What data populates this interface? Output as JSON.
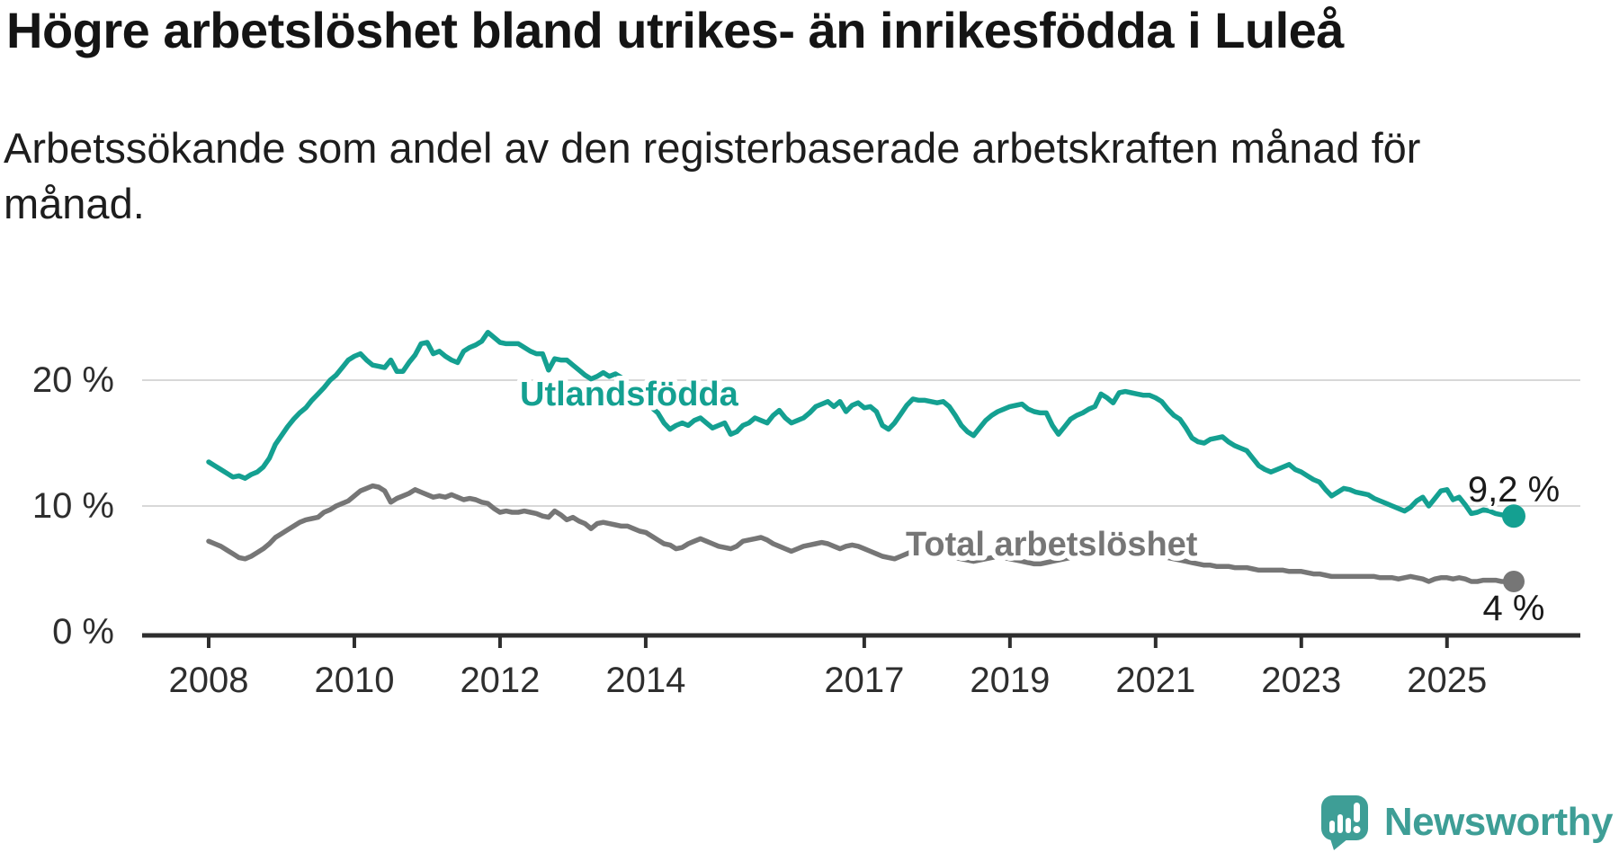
{
  "header": {
    "title": "Högre arbetslöshet bland utrikes- än inrikesfödda i Luleå",
    "subtitle_lines": [
      "Arbetssökande som andel av den registerbaserade arbetskraften månad för",
      "månad."
    ]
  },
  "footer": {
    "brand": "Newsworthy",
    "logo_icon": "speech-bubble-bar-chart-icon"
  },
  "colors": {
    "accent_teal": "#14a091",
    "series_gray": "#767676",
    "logo_teal": "#3e9e96",
    "grid_gray": "#d8d8d8",
    "axis_dark": "#2e2e2e",
    "label_dark": "#1a1a1a"
  },
  "chart_data": {
    "type": "line",
    "x_start": "2008-01",
    "x_end": "2025-12",
    "x_unit": "month",
    "ylim": [
      0,
      26
    ],
    "grid": "horizontal",
    "x_tick_labels": [
      "2008",
      "2010",
      "2012",
      "2014",
      "2017",
      "2019",
      "2021",
      "2023",
      "2025"
    ],
    "y_ticks": [
      {
        "value": 0,
        "label": "0 %"
      },
      {
        "value": 10,
        "label": "10 %"
      },
      {
        "value": 20,
        "label": "20 %"
      }
    ],
    "series": [
      {
        "name": "Utlandsfödda",
        "slug": "utlandsfodda",
        "color": "#14a091",
        "end_label": "9,2 %",
        "end_value": 9.2,
        "values": [
          13.5,
          13.2,
          12.9,
          12.6,
          12.3,
          12.4,
          12.2,
          12.5,
          12.7,
          13.1,
          13.8,
          14.9,
          15.6,
          16.3,
          16.9,
          17.4,
          17.8,
          18.4,
          18.9,
          19.4,
          20.0,
          20.4,
          21.0,
          21.6,
          21.9,
          22.1,
          21.6,
          21.2,
          21.1,
          21.0,
          21.6,
          20.7,
          20.7,
          21.4,
          22.0,
          22.9,
          23.0,
          22.1,
          22.3,
          21.9,
          21.6,
          21.4,
          22.3,
          22.6,
          22.8,
          23.1,
          23.8,
          23.4,
          23.0,
          22.9,
          22.9,
          22.9,
          22.6,
          22.3,
          22.1,
          22.1,
          20.8,
          21.7,
          21.6,
          21.6,
          21.2,
          20.8,
          20.4,
          20.1,
          20.3,
          20.6,
          20.3,
          20.5,
          20.2,
          19.6,
          19.0,
          18.6,
          18.2,
          17.8,
          17.4,
          16.6,
          16.1,
          16.4,
          16.6,
          16.4,
          16.8,
          17.0,
          16.6,
          16.2,
          16.4,
          16.6,
          15.7,
          15.9,
          16.4,
          16.6,
          17.0,
          16.8,
          16.6,
          17.2,
          17.6,
          17.0,
          16.6,
          16.8,
          17.0,
          17.4,
          17.9,
          18.1,
          18.3,
          17.9,
          18.3,
          17.5,
          18.0,
          18.2,
          17.8,
          17.9,
          17.5,
          16.4,
          16.1,
          16.6,
          17.3,
          18.0,
          18.5,
          18.4,
          18.4,
          18.3,
          18.2,
          18.3,
          17.9,
          17.2,
          16.4,
          15.9,
          15.6,
          16.2,
          16.8,
          17.2,
          17.5,
          17.7,
          17.9,
          18.0,
          18.1,
          17.7,
          17.5,
          17.4,
          17.4,
          16.4,
          15.7,
          16.3,
          16.9,
          17.2,
          17.4,
          17.7,
          17.9,
          18.9,
          18.6,
          18.2,
          19.0,
          19.1,
          19.0,
          18.9,
          18.8,
          18.8,
          18.6,
          18.3,
          17.7,
          17.2,
          16.9,
          16.2,
          15.4,
          15.1,
          15.0,
          15.3,
          15.4,
          15.5,
          15.1,
          14.8,
          14.6,
          14.4,
          13.8,
          13.2,
          12.9,
          12.7,
          12.9,
          13.1,
          13.3,
          12.9,
          12.7,
          12.4,
          12.1,
          11.9,
          11.3,
          10.8,
          11.1,
          11.4,
          11.3,
          11.1,
          11.0,
          10.9,
          10.6,
          10.4,
          10.2,
          10.0,
          9.8,
          9.6,
          9.9,
          10.4,
          10.7,
          10.0,
          10.6,
          11.2,
          11.3,
          10.5,
          10.7,
          10.1,
          9.4,
          9.5,
          9.7,
          9.6,
          9.4,
          9.3,
          9.2,
          9.2
        ]
      },
      {
        "name": "Total arbetslöshet",
        "slug": "total-arbetsloshet",
        "color": "#767676",
        "end_label": "4 %",
        "end_value": 4.0,
        "values": [
          7.2,
          7.0,
          6.8,
          6.5,
          6.2,
          5.9,
          5.8,
          6.0,
          6.3,
          6.6,
          7.0,
          7.5,
          7.8,
          8.1,
          8.4,
          8.7,
          8.9,
          9.0,
          9.1,
          9.5,
          9.7,
          10.0,
          10.2,
          10.4,
          10.8,
          11.2,
          11.4,
          11.6,
          11.5,
          11.2,
          10.3,
          10.6,
          10.8,
          11.0,
          11.3,
          11.1,
          10.9,
          10.7,
          10.8,
          10.7,
          10.9,
          10.7,
          10.5,
          10.6,
          10.5,
          10.3,
          10.2,
          9.8,
          9.5,
          9.6,
          9.5,
          9.5,
          9.6,
          9.5,
          9.4,
          9.2,
          9.1,
          9.6,
          9.3,
          8.9,
          9.1,
          8.8,
          8.6,
          8.2,
          8.6,
          8.7,
          8.6,
          8.5,
          8.4,
          8.4,
          8.2,
          8.0,
          7.9,
          7.6,
          7.3,
          7.0,
          6.9,
          6.6,
          6.7,
          7.0,
          7.2,
          7.4,
          7.2,
          7.0,
          6.8,
          6.7,
          6.6,
          6.8,
          7.2,
          7.3,
          7.4,
          7.5,
          7.3,
          7.0,
          6.8,
          6.6,
          6.4,
          6.6,
          6.8,
          6.9,
          7.0,
          7.1,
          7.0,
          6.8,
          6.6,
          6.8,
          6.9,
          6.8,
          6.6,
          6.4,
          6.2,
          6.0,
          5.9,
          5.8,
          6.0,
          6.2,
          6.4,
          6.5,
          6.6,
          6.5,
          6.3,
          6.2,
          6.0,
          5.9,
          5.8,
          5.7,
          5.6,
          5.7,
          5.8,
          5.9,
          6.0,
          5.9,
          5.8,
          5.7,
          5.6,
          5.5,
          5.4,
          5.4,
          5.5,
          5.6,
          5.7,
          5.8,
          5.9,
          6.0,
          6.1,
          6.2,
          6.4,
          6.8,
          6.9,
          6.8,
          6.7,
          6.6,
          6.5,
          6.4,
          6.3,
          6.2,
          6.1,
          6.0,
          5.9,
          5.8,
          5.7,
          5.6,
          5.5,
          5.4,
          5.3,
          5.3,
          5.2,
          5.2,
          5.2,
          5.1,
          5.1,
          5.1,
          5.0,
          4.9,
          4.9,
          4.9,
          4.9,
          4.9,
          4.8,
          4.8,
          4.8,
          4.7,
          4.6,
          4.6,
          4.5,
          4.4,
          4.4,
          4.4,
          4.4,
          4.4,
          4.4,
          4.4,
          4.4,
          4.3,
          4.3,
          4.3,
          4.2,
          4.3,
          4.4,
          4.3,
          4.2,
          4.0,
          4.2,
          4.3,
          4.3,
          4.2,
          4.3,
          4.2,
          4.0,
          4.0,
          4.1,
          4.1,
          4.1,
          4.0,
          4.0,
          4.0
        ]
      }
    ]
  }
}
